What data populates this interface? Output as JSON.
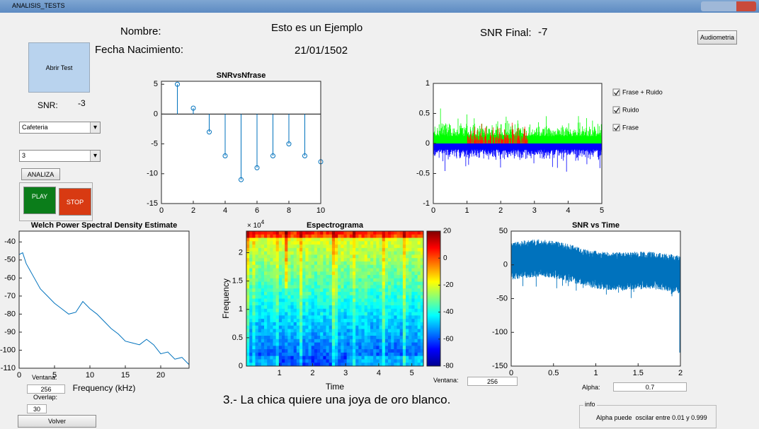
{
  "window": {
    "title": "ANALISIS_TESTS"
  },
  "header": {
    "name_label": "Nombre:",
    "name": "Esto es un Ejemplo",
    "birth_label": "Fecha Nacimiento:",
    "birth": "21/01/1502",
    "snr_final_label": "SNR Final:",
    "snr_final": -7
  },
  "buttons": {
    "open": "Abrir Test",
    "audiometry": "Audiometria",
    "analyze": "ANALIZA",
    "play": "PLAY",
    "stop": "STOP",
    "back": "Volver"
  },
  "snr": {
    "label": "SNR:",
    "value": -3
  },
  "selects": {
    "noise": "Cafeteria",
    "level": "3"
  },
  "stem_chart": {
    "type": "stem",
    "title": "SNRvsNfrase",
    "x": [
      1,
      2,
      3,
      4,
      5,
      6,
      7,
      8,
      9,
      10
    ],
    "values": [
      5,
      1,
      -3,
      -7,
      -11,
      -9,
      -7,
      -5,
      -7,
      -8
    ],
    "color": "#0072bd",
    "xlim": [
      0,
      10
    ],
    "ylim": [
      -15,
      5.5
    ],
    "xticks": [
      0,
      2,
      4,
      6,
      8,
      10
    ],
    "yticks": [
      -15,
      -10,
      -5,
      0,
      5
    ]
  },
  "signal_chart": {
    "type": "waveform",
    "xlim": [
      0,
      5
    ],
    "ylim": [
      -1,
      1
    ],
    "xticks": [
      0,
      1,
      2,
      3,
      4,
      5
    ],
    "yticks": [
      -1,
      -0.5,
      0,
      0.5,
      1
    ],
    "series": [
      {
        "name": "Frase + Ruido",
        "color": "#00ff00"
      },
      {
        "name": "Ruido",
        "color": "#0000ff"
      },
      {
        "name": "Frase",
        "color": "#ff2000"
      }
    ]
  },
  "welch_chart": {
    "type": "line",
    "title": "Welch Power Spectral Density Estimate",
    "xlabel": "Frequency (kHz)",
    "color": "#0072bd",
    "x": [
      0,
      0.5,
      1,
      2,
      3,
      4,
      5,
      6,
      7,
      8,
      9,
      10,
      11,
      12,
      13,
      14,
      15,
      16,
      17,
      18,
      19,
      20,
      21,
      22,
      23,
      24
    ],
    "values": [
      -47,
      -46,
      -52,
      -59,
      -66,
      -70,
      -74,
      -77,
      -80,
      -79,
      -73,
      -77,
      -80,
      -84,
      -88,
      -91,
      -95,
      -96,
      -97,
      -94,
      -97,
      -102,
      -101,
      -105,
      -104,
      -108
    ],
    "xlim": [
      0,
      24
    ],
    "ylim": [
      -110,
      -34
    ],
    "xticks": [
      0,
      5,
      10,
      15,
      20
    ],
    "yticks": [
      -110,
      -100,
      -90,
      -80,
      -70,
      -60,
      -50,
      -40
    ]
  },
  "spectrogram": {
    "type": "spectrogram",
    "title": "Espectrograma",
    "xlabel": "Time",
    "ylabel": "Frequency",
    "exponent_base": "× 10",
    "exponent": 4,
    "xlim": [
      0,
      5.35
    ],
    "ylim": [
      0,
      2.38
    ],
    "xticks": [
      1,
      2,
      3,
      4,
      5
    ],
    "yticks": [
      0,
      0.5,
      1,
      1.5,
      2
    ],
    "clim": [
      -80,
      20
    ],
    "cticks": [
      -80,
      -60,
      -40,
      -20,
      0,
      20
    ]
  },
  "snr_time_chart": {
    "type": "noise-line",
    "title": "SNR vs Time",
    "color": "#0072bd",
    "xlim": [
      0,
      2
    ],
    "ylim": [
      -150,
      50
    ],
    "xticks": [
      0,
      0.5,
      1,
      1.5,
      2
    ],
    "yticks": [
      -150,
      -100,
      -50,
      0,
      50
    ]
  },
  "fields": {
    "ventana_label": "Ventana:",
    "ventana": 256,
    "overlap_label": "Overlap:",
    "overlap": 30,
    "ventana2_label": "Ventana:",
    "ventana2": 256,
    "alpha_label": "Alpha:",
    "alpha": 0.7
  },
  "sentence": "3.- La chica quiere una joya de oro blanco.",
  "info": {
    "title": "info",
    "text": "Alpha puede  oscilar entre 0.01 y 0.999"
  }
}
